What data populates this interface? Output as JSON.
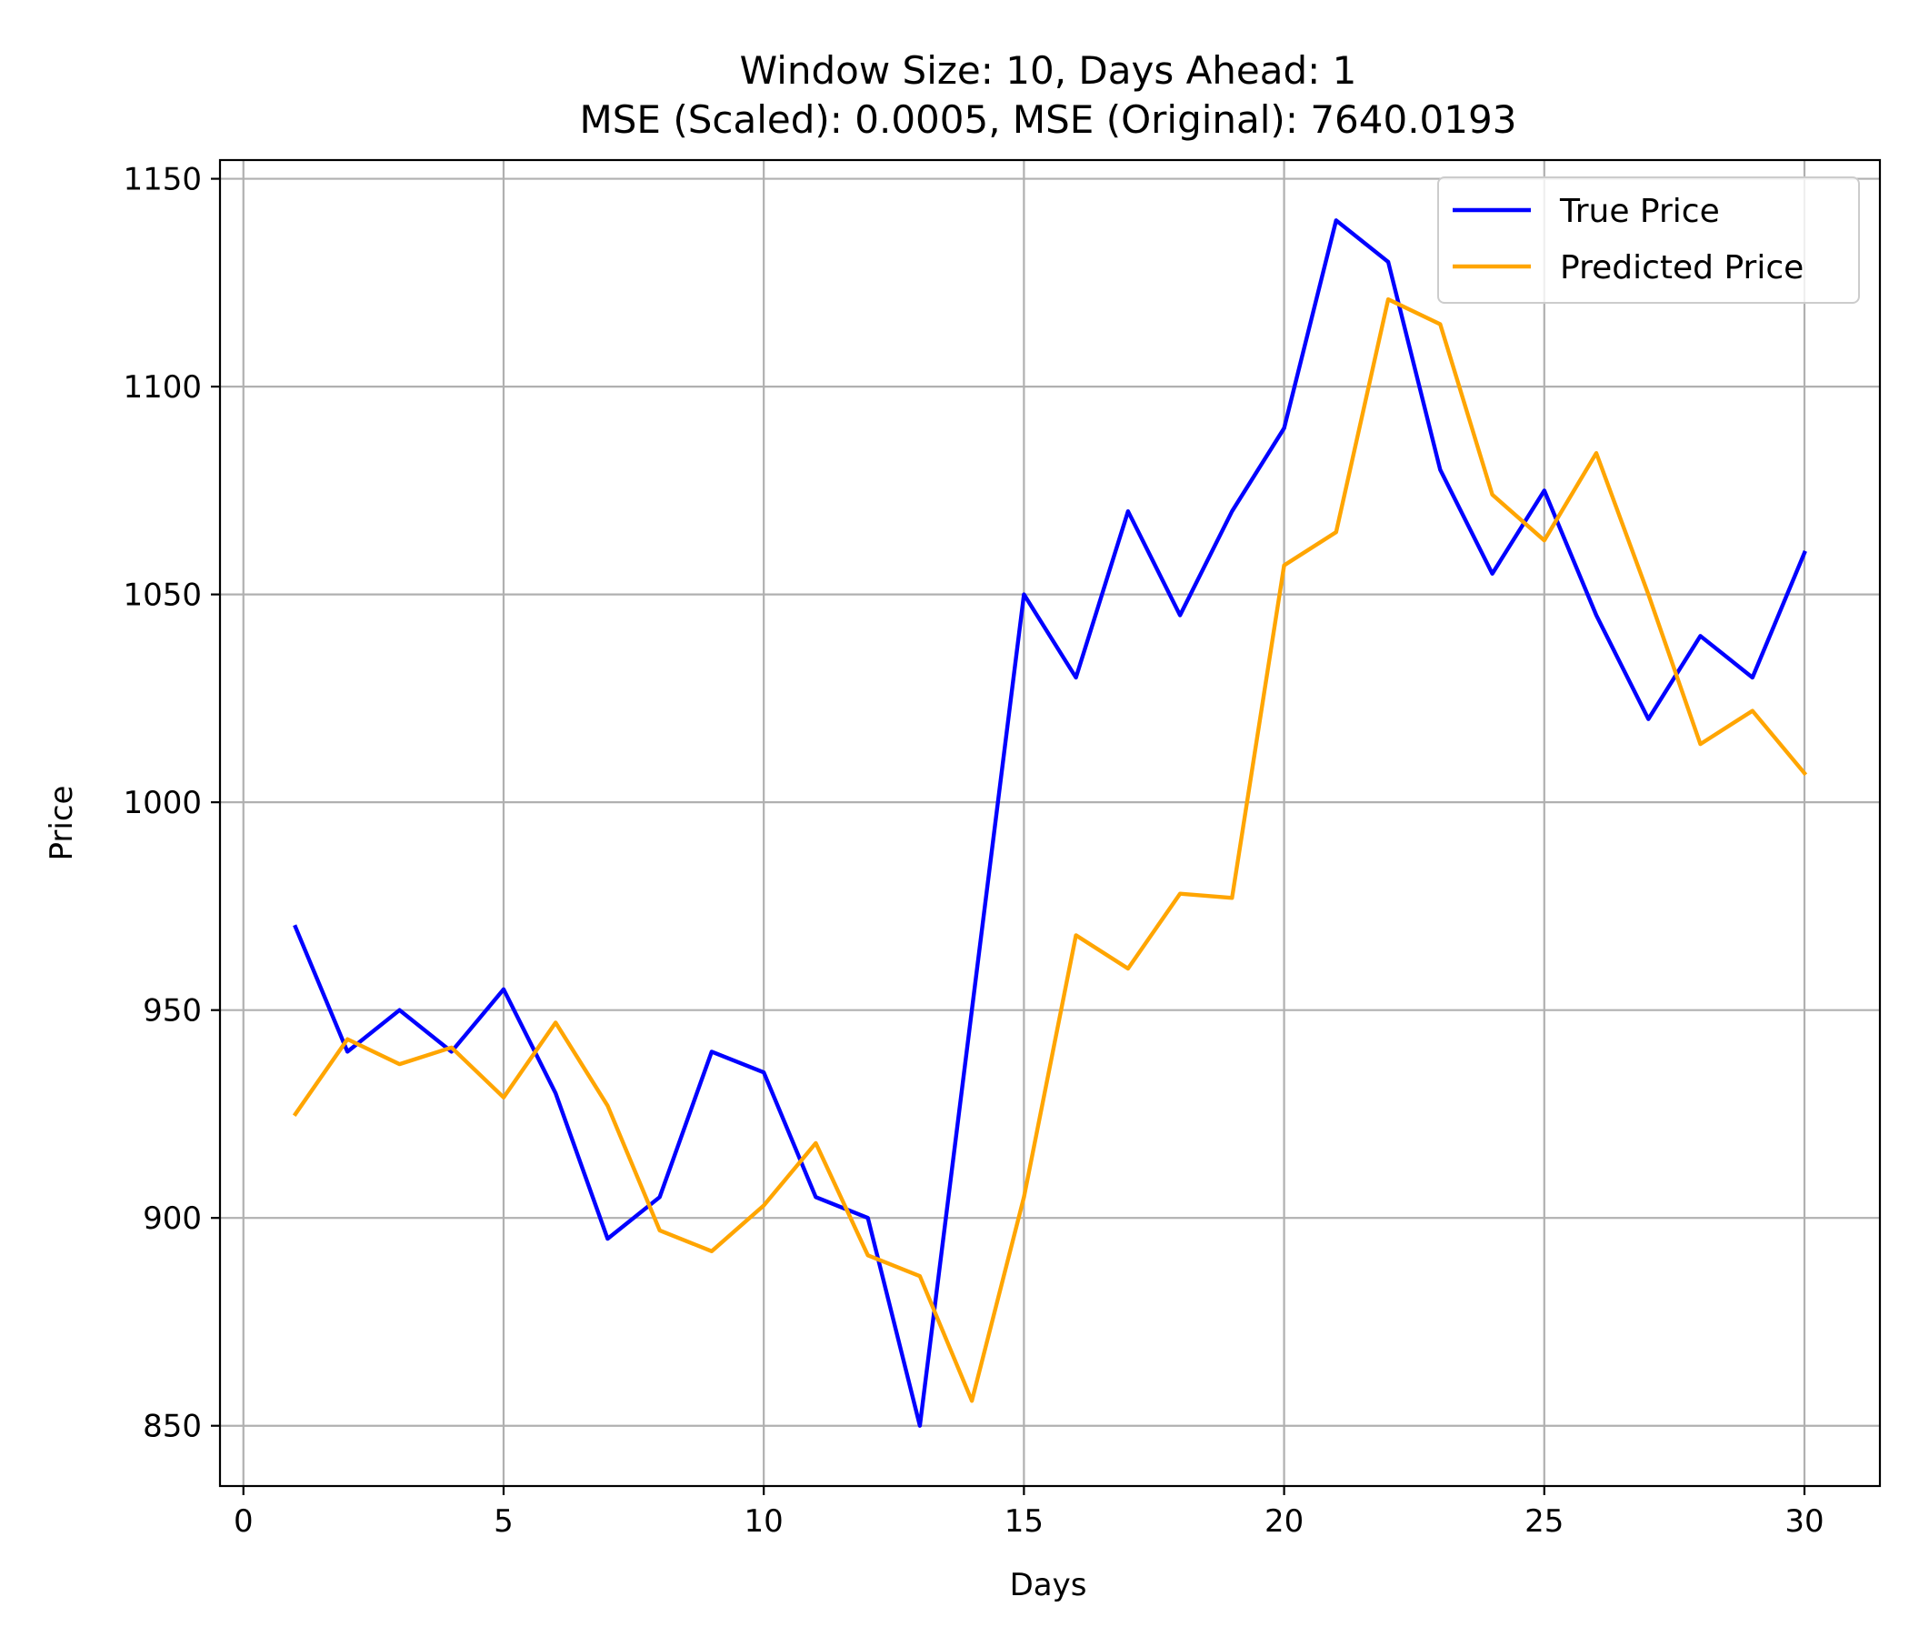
{
  "chart_data": {
    "type": "line",
    "title": "Window Size: 10, Days Ahead: 1",
    "subtitle": "MSE (Scaled): 0.0005, MSE (Original): 7640.0193",
    "xlabel": "Days",
    "ylabel": "Price",
    "xlim": [
      -0.45,
      31.45
    ],
    "ylim": [
      835.5,
      1154.5
    ],
    "xticks": [
      0,
      5,
      10,
      15,
      20,
      25,
      30
    ],
    "yticks": [
      850,
      900,
      950,
      1000,
      1050,
      1100,
      1150
    ],
    "grid": true,
    "legend_position": "top-right",
    "x": [
      1,
      2,
      3,
      4,
      5,
      6,
      7,
      8,
      9,
      10,
      11,
      12,
      13,
      14,
      15,
      16,
      17,
      18,
      19,
      20,
      21,
      22,
      23,
      24,
      25,
      26,
      27,
      28,
      29,
      30
    ],
    "series": [
      {
        "name": "True Price",
        "color": "#0000ff",
        "values": [
          970,
          940,
          950,
          940,
          955,
          930,
          895,
          905,
          940,
          935,
          905,
          900,
          850,
          950,
          1050,
          1030,
          1070,
          1045,
          1070,
          1090,
          1140,
          1130,
          1080,
          1055,
          1075,
          1045,
          1020,
          1040,
          1030,
          1060
        ]
      },
      {
        "name": "Predicted Price",
        "color": "#ffa500",
        "values": [
          925,
          943,
          937,
          941,
          929,
          947,
          927,
          897,
          892,
          903,
          918,
          891,
          886,
          856,
          905,
          968,
          960,
          978,
          977,
          1057,
          1065,
          1121,
          1115,
          1074,
          1063,
          1084,
          1050,
          1014,
          1022,
          1007
        ]
      }
    ]
  }
}
